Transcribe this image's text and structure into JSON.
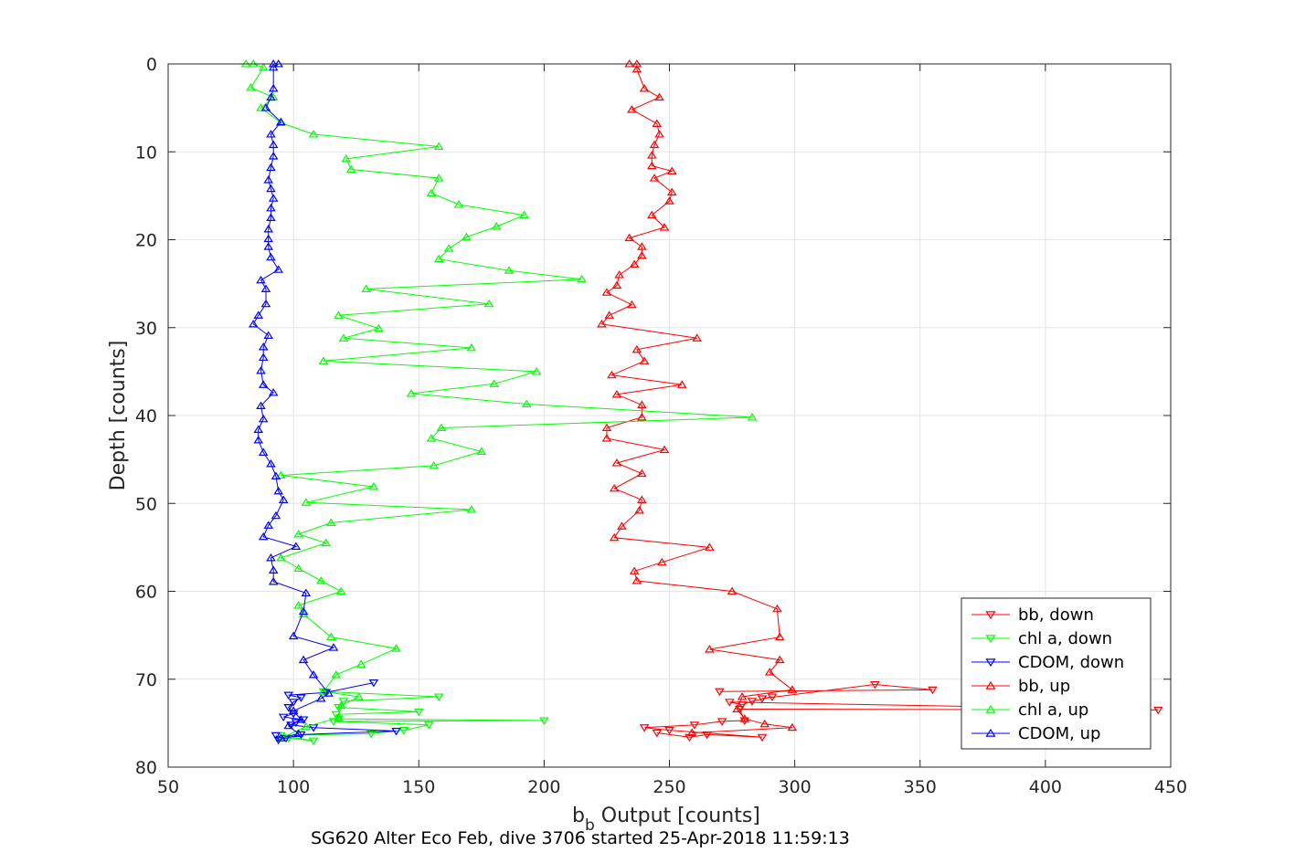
{
  "chart_data": {
    "type": "line",
    "caption": "SG620 Alter Eco Feb, dive 3706 started 25-Apr-2018 11:59:13",
    "xlabel_main": "b",
    "xlabel_sub": "b",
    "xlabel_rest": " Output [counts]",
    "ylabel": "Depth [counts]",
    "xlim": [
      50,
      450
    ],
    "ylim": [
      0,
      80
    ],
    "y_reversed": true,
    "x_ticks": [
      "50",
      "100",
      "150",
      "200",
      "250",
      "300",
      "350",
      "400",
      "450"
    ],
    "y_ticks": [
      "0",
      "10",
      "20",
      "30",
      "40",
      "50",
      "60",
      "70",
      "80"
    ],
    "grid": true,
    "legend_position": "bottom-right",
    "series": [
      {
        "name": "bb, down",
        "color": "#ff0000",
        "marker": "triangle-down",
        "points": [
          [
            270,
            71.4
          ],
          [
            355,
            71.2
          ],
          [
            332,
            70.6
          ],
          [
            287,
            72.2
          ],
          [
            291,
            72.0
          ],
          [
            283,
            72.5
          ],
          [
            279,
            72.9
          ],
          [
            274,
            72.6
          ],
          [
            445,
            73.5
          ],
          [
            278,
            73.4
          ],
          [
            280,
            74.7
          ],
          [
            271,
            74.8
          ],
          [
            260,
            75.2
          ],
          [
            240,
            75.5
          ],
          [
            250,
            75.8
          ],
          [
            287,
            76.6
          ],
          [
            265,
            76.3
          ],
          [
            258,
            76.6
          ],
          [
            245,
            76.1
          ]
        ]
      },
      {
        "name": "chl a, down",
        "color": "#00ff00",
        "marker": "triangle-down",
        "points": [
          [
            112,
            71.4
          ],
          [
            158,
            72.0
          ],
          [
            120,
            72.5
          ],
          [
            118,
            73.2
          ],
          [
            150,
            73.7
          ],
          [
            117,
            74.0
          ],
          [
            118,
            74.5
          ],
          [
            200,
            74.7
          ],
          [
            116,
            74.8
          ],
          [
            154,
            75.2
          ],
          [
            144,
            75.8
          ],
          [
            131,
            76.2
          ],
          [
            95,
            76.4
          ],
          [
            108,
            77.0
          ],
          [
            98,
            76.7
          ]
        ]
      },
      {
        "name": "CDOM, down",
        "color": "#0000ff",
        "marker": "triangle-down",
        "points": [
          [
            132,
            70.4
          ],
          [
            113,
            71.5
          ],
          [
            98,
            71.8
          ],
          [
            103,
            72.1
          ],
          [
            100,
            72.6
          ],
          [
            98,
            73.2
          ],
          [
            100,
            73.9
          ],
          [
            96,
            74.3
          ],
          [
            104,
            74.6
          ],
          [
            101,
            74.9
          ],
          [
            99,
            75.2
          ],
          [
            108,
            75.5
          ],
          [
            141,
            75.9
          ],
          [
            103,
            76.3
          ],
          [
            97,
            76.7
          ],
          [
            94,
            76.9
          ],
          [
            93,
            76.4
          ]
        ]
      },
      {
        "name": "bb, up",
        "color": "#ff0000",
        "marker": "triangle-up",
        "points": [
          [
            234,
            0
          ],
          [
            237,
            0
          ],
          [
            237,
            0.6
          ],
          [
            240,
            2.8
          ],
          [
            246,
            3.8
          ],
          [
            235,
            5.2
          ],
          [
            245,
            6.8
          ],
          [
            246,
            8.0
          ],
          [
            244,
            9.2
          ],
          [
            243,
            10.4
          ],
          [
            243,
            11.6
          ],
          [
            251,
            12.2
          ],
          [
            244,
            13.0
          ],
          [
            251,
            14.6
          ],
          [
            250,
            15.6
          ],
          [
            243,
            17.2
          ],
          [
            248,
            18.6
          ],
          [
            234,
            19.8
          ],
          [
            239,
            20.8
          ],
          [
            239,
            21.8
          ],
          [
            236,
            22.8
          ],
          [
            230,
            24.0
          ],
          [
            229,
            25.2
          ],
          [
            225,
            26.0
          ],
          [
            235,
            27.4
          ],
          [
            226,
            28.6
          ],
          [
            223,
            29.6
          ],
          [
            261,
            31.2
          ],
          [
            237,
            32.5
          ],
          [
            240,
            33.8
          ],
          [
            227,
            35.4
          ],
          [
            255,
            36.5
          ],
          [
            229,
            37.6
          ],
          [
            239,
            38.8
          ],
          [
            239,
            40.2
          ],
          [
            225,
            41.4
          ],
          [
            225,
            42.6
          ],
          [
            248,
            43.9
          ],
          [
            229,
            45.4
          ],
          [
            239,
            46.6
          ],
          [
            228,
            48.3
          ],
          [
            239,
            49.6
          ],
          [
            238,
            50.8
          ],
          [
            231,
            52.6
          ],
          [
            228,
            53.9
          ],
          [
            266,
            55.0
          ],
          [
            247,
            56.7
          ],
          [
            236,
            57.7
          ],
          [
            237,
            58.8
          ],
          [
            275,
            60.0
          ],
          [
            293,
            62.0
          ],
          [
            294,
            65.2
          ],
          [
            266,
            66.6
          ],
          [
            294,
            67.8
          ],
          [
            290,
            69.2
          ],
          [
            299,
            71.2
          ],
          [
            279,
            72.0
          ],
          [
            277,
            73.4
          ],
          [
            280,
            74.5
          ],
          [
            288,
            75.1
          ],
          [
            299,
            75.5
          ],
          [
            259,
            76.1
          ]
        ]
      },
      {
        "name": "chl a, up",
        "color": "#00ff00",
        "marker": "triangle-up",
        "points": [
          [
            81,
            0
          ],
          [
            84,
            0
          ],
          [
            88,
            0.4
          ],
          [
            83,
            2.7
          ],
          [
            92,
            3.8
          ],
          [
            87,
            5.0
          ],
          [
            95,
            6.7
          ],
          [
            108,
            8.0
          ],
          [
            158,
            9.4
          ],
          [
            121,
            10.8
          ],
          [
            123,
            12.0
          ],
          [
            158,
            13.0
          ],
          [
            155,
            14.7
          ],
          [
            166,
            16.0
          ],
          [
            192,
            17.2
          ],
          [
            181,
            18.5
          ],
          [
            169,
            19.7
          ],
          [
            162,
            21.0
          ],
          [
            158,
            22.2
          ],
          [
            186,
            23.5
          ],
          [
            215,
            24.5
          ],
          [
            129,
            25.6
          ],
          [
            178,
            27.3
          ],
          [
            118,
            28.6
          ],
          [
            134,
            30.1
          ],
          [
            120,
            31.2
          ],
          [
            171,
            32.3
          ],
          [
            112,
            33.8
          ],
          [
            197,
            35.0
          ],
          [
            180,
            36.4
          ],
          [
            147,
            37.5
          ],
          [
            193,
            38.7
          ],
          [
            283,
            40.2
          ],
          [
            159,
            41.4
          ],
          [
            155,
            42.6
          ],
          [
            175,
            44.1
          ],
          [
            156,
            45.7
          ],
          [
            95,
            46.8
          ],
          [
            132,
            48.1
          ],
          [
            105,
            49.9
          ],
          [
            171,
            50.7
          ],
          [
            115,
            52.2
          ],
          [
            102,
            53.5
          ],
          [
            113,
            54.5
          ],
          [
            95,
            56.2
          ],
          [
            102,
            57.4
          ],
          [
            111,
            58.8
          ],
          [
            119,
            60.0
          ],
          [
            102,
            61.6
          ],
          [
            104,
            62.6
          ],
          [
            115,
            65.2
          ],
          [
            141,
            66.5
          ],
          [
            127,
            68.3
          ],
          [
            117,
            69.5
          ],
          [
            112,
            71.4
          ],
          [
            126,
            72.0
          ],
          [
            119,
            73.0
          ],
          [
            118,
            74.4
          ],
          [
            105,
            75.4
          ],
          [
            95,
            76.7
          ]
        ]
      },
      {
        "name": "CDOM, up",
        "color": "#0000ff",
        "marker": "triangle-up",
        "points": [
          [
            92,
            0
          ],
          [
            94,
            0
          ],
          [
            92,
            0.4
          ],
          [
            92,
            2.8
          ],
          [
            91,
            3.8
          ],
          [
            89,
            5.0
          ],
          [
            95,
            6.6
          ],
          [
            91,
            8.0
          ],
          [
            92,
            9.2
          ],
          [
            92,
            10.5
          ],
          [
            91,
            11.8
          ],
          [
            90,
            13.2
          ],
          [
            91,
            14.2
          ],
          [
            92,
            15.3
          ],
          [
            91,
            16.4
          ],
          [
            91,
            17.5
          ],
          [
            90,
            18.8
          ],
          [
            90,
            19.9
          ],
          [
            90,
            20.8
          ],
          [
            91,
            22.0
          ],
          [
            94,
            23.4
          ],
          [
            87,
            24.6
          ],
          [
            89,
            25.6
          ],
          [
            89,
            27.3
          ],
          [
            86,
            28.6
          ],
          [
            84,
            29.6
          ],
          [
            90,
            30.9
          ],
          [
            88,
            32.2
          ],
          [
            88,
            33.4
          ],
          [
            87,
            34.9
          ],
          [
            88,
            36.5
          ],
          [
            92,
            37.4
          ],
          [
            87,
            38.9
          ],
          [
            88,
            40.4
          ],
          [
            86,
            41.6
          ],
          [
            86,
            42.8
          ],
          [
            88,
            44.2
          ],
          [
            91,
            45.5
          ],
          [
            93,
            46.9
          ],
          [
            94,
            48.6
          ],
          [
            96,
            49.6
          ],
          [
            93,
            51.4
          ],
          [
            90,
            52.5
          ],
          [
            88,
            53.8
          ],
          [
            101,
            54.9
          ],
          [
            91,
            56.2
          ],
          [
            92,
            57.6
          ],
          [
            92,
            58.9
          ],
          [
            105,
            60.2
          ],
          [
            104,
            62.3
          ],
          [
            100,
            65.1
          ],
          [
            116,
            66.4
          ],
          [
            104,
            67.8
          ],
          [
            108,
            69.5
          ],
          [
            114,
            71.6
          ],
          [
            111,
            72.2
          ],
          [
            100,
            73.6
          ],
          [
            103,
            74.6
          ],
          [
            98,
            75.3
          ],
          [
            102,
            76.2
          ],
          [
            95,
            76.7
          ]
        ]
      }
    ]
  }
}
